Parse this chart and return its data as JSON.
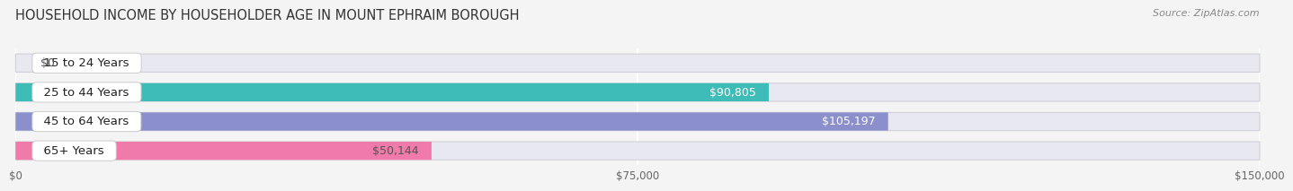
{
  "title": "HOUSEHOLD INCOME BY HOUSEHOLDER AGE IN MOUNT EPHRAIM BOROUGH",
  "source": "Source: ZipAtlas.com",
  "categories": [
    "15 to 24 Years",
    "25 to 44 Years",
    "45 to 64 Years",
    "65+ Years"
  ],
  "values": [
    0,
    90805,
    105197,
    50144
  ],
  "bar_colors": [
    "#c9a8d4",
    "#3dbcb8",
    "#8b8fcc",
    "#f07aaa"
  ],
  "bar_bg_color": "#e8e8f0",
  "value_labels": [
    "$0",
    "$90,805",
    "$105,197",
    "$50,144"
  ],
  "value_label_colors": [
    "#555555",
    "#ffffff",
    "#ffffff",
    "#555555"
  ],
  "xlim": [
    0,
    150000
  ],
  "xticks": [
    0,
    75000,
    150000
  ],
  "xtick_labels": [
    "$0",
    "$75,000",
    "$150,000"
  ],
  "title_fontsize": 10.5,
  "source_fontsize": 8,
  "cat_label_fontsize": 9.5,
  "value_fontsize": 9,
  "background_color": "#f4f4f4"
}
